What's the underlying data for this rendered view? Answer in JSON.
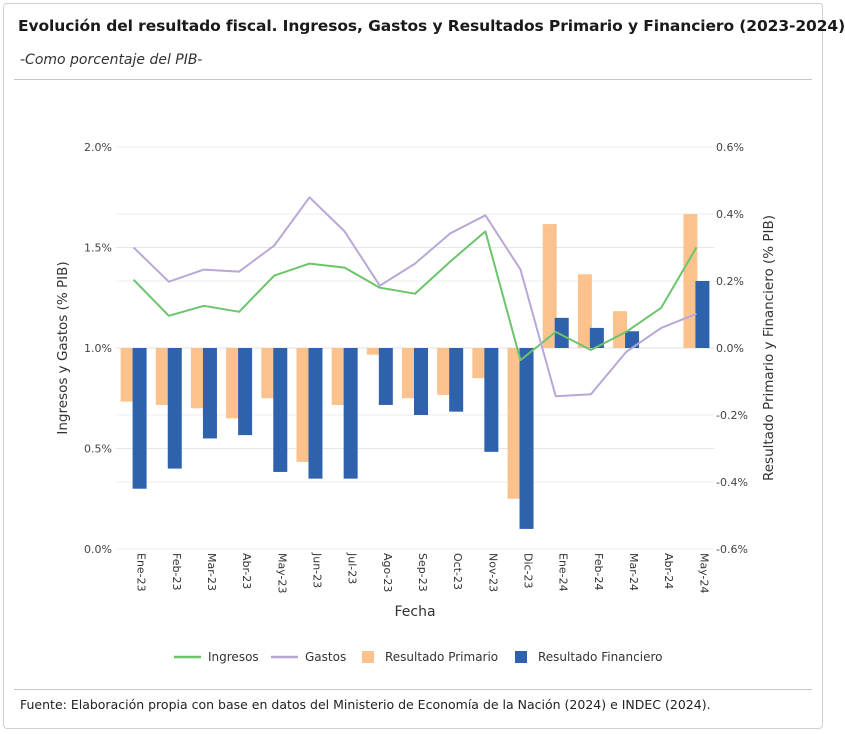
{
  "header": {
    "title": "Evolución del resultado fiscal. Ingresos, Gastos y Resultados Primario y Financiero (2023-2024)",
    "subtitle": "-Como porcentaje del PIB-"
  },
  "footer": {
    "source": "Fuente: Elaboración propia con base en datos del Ministerio de Economía de la Nación (2024) e INDEC (2024)."
  },
  "chart_data": {
    "type": "bar",
    "title": "",
    "xlabel": "Fecha",
    "ylabel": "Ingresos y Gastos (% PIB)",
    "y2label": "Resultado Primario y Financiero (% PIB)",
    "ylim": [
      0,
      2.0
    ],
    "y2lim": [
      -0.6,
      0.6
    ],
    "yticks": [
      "0.0%",
      "0.5%",
      "1.0%",
      "1.5%",
      "2.0%"
    ],
    "y2ticks": [
      "-0.6%",
      "-0.4%",
      "-0.2%",
      "0.0%",
      "0.2%",
      "0.4%",
      "0.6%"
    ],
    "grid": true,
    "legend_position": "bottom-center",
    "categories": [
      "Ene-23",
      "Feb-23",
      "Mar-23",
      "Abr-23",
      "May-23",
      "Jun-23",
      "Jul-23",
      "Ago-23",
      "Sep-23",
      "Oct-23",
      "Nov-23",
      "Dic-23",
      "Ene-24",
      "Feb-24",
      "Mar-24",
      "Abr-24",
      "May-24"
    ],
    "series": [
      {
        "name": "Ingresos",
        "kind": "line",
        "axis": "left",
        "color": "#6cc46c",
        "values": [
          1.34,
          1.16,
          1.21,
          1.18,
          1.36,
          1.42,
          1.4,
          1.3,
          1.27,
          1.43,
          1.58,
          0.94,
          1.08,
          0.99,
          1.08,
          1.2,
          1.5
        ]
      },
      {
        "name": "Gastos",
        "kind": "line",
        "axis": "left",
        "color": "#b9a8d6",
        "values": [
          1.5,
          1.33,
          1.39,
          1.38,
          1.51,
          1.75,
          1.58,
          1.31,
          1.42,
          1.57,
          1.66,
          1.39,
          0.76,
          0.77,
          0.98,
          1.1,
          1.17
        ]
      },
      {
        "name": "Resultado Primario",
        "kind": "bar",
        "axis": "right",
        "color": "#fcc28d",
        "values": [
          -0.16,
          -0.17,
          -0.18,
          -0.21,
          -0.15,
          -0.34,
          -0.17,
          -0.02,
          -0.15,
          -0.14,
          -0.09,
          -0.45,
          0.37,
          0.22,
          0.11,
          0.0,
          0.4
        ]
      },
      {
        "name": "Resultado Financiero",
        "kind": "bar",
        "axis": "right",
        "color": "#2e62ad",
        "values": [
          -0.42,
          -0.36,
          -0.27,
          -0.26,
          -0.37,
          -0.39,
          -0.39,
          -0.17,
          -0.2,
          -0.19,
          -0.31,
          -0.54,
          0.09,
          0.06,
          0.05,
          0.0,
          0.2
        ]
      }
    ]
  }
}
